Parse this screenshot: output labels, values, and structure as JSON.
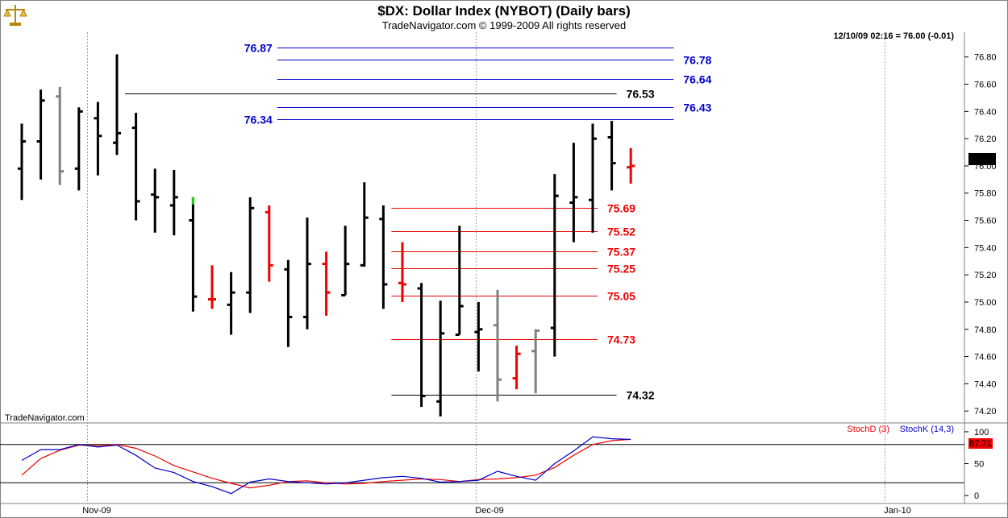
{
  "header": {
    "title": "$DX:  Dollar Index (NYBOT)  (Daily bars)",
    "subtitle": "TradeNavigator.com © 1999-2009 All rights reserved",
    "quote": "12/10/09 02:16 = 76.00 (-0.01)",
    "watermark": "TradeNavigator.com",
    "logo_icon": "scales-icon"
  },
  "chart_data": [
    {
      "type": "ohlc",
      "title": "$DX:  Dollar Index (NYBOT)  (Daily bars)",
      "ylim": [
        74.13,
        76.97
      ],
      "yticks": [
        "76.80",
        "76.60",
        "76.40",
        "76.20",
        "76.00",
        "75.80",
        "75.60",
        "75.40",
        "75.20",
        "75.00",
        "74.80",
        "74.60",
        "74.40",
        "74.20"
      ],
      "ytick_values": [
        76.8,
        76.6,
        76.4,
        76.2,
        76.0,
        75.8,
        75.6,
        75.4,
        75.2,
        75.0,
        74.8,
        74.6,
        74.4,
        74.2
      ],
      "xlabels": [
        "Nov-09",
        "Dec-09",
        "Jan-10"
      ],
      "last_price": "76.00",
      "colors": {
        "up": "#000000",
        "down": "#ee0000",
        "neutral": "#808080",
        "support": "#ee0000",
        "resistance": "#0000cc",
        "key": "#000000",
        "highlight": "#22cc22"
      },
      "bars": [
        {
          "o": 75.98,
          "h": 76.31,
          "l": 75.75,
          "c": 76.18,
          "color": "#000000"
        },
        {
          "o": 76.18,
          "h": 76.56,
          "l": 75.9,
          "c": 76.48,
          "color": "#000000"
        },
        {
          "o": 76.51,
          "h": 76.58,
          "l": 75.86,
          "c": 75.96,
          "color": "#808080"
        },
        {
          "o": 75.98,
          "h": 76.43,
          "l": 75.82,
          "c": 76.4,
          "color": "#000000"
        },
        {
          "o": 76.35,
          "h": 76.47,
          "l": 75.93,
          "c": 76.22,
          "color": "#000000"
        },
        {
          "o": 76.17,
          "h": 76.82,
          "l": 76.08,
          "c": 76.24,
          "color": "#000000"
        },
        {
          "o": 76.28,
          "h": 76.39,
          "l": 75.6,
          "c": 75.74,
          "color": "#000000"
        },
        {
          "o": 75.79,
          "h": 75.98,
          "l": 75.51,
          "c": 75.77,
          "color": "#000000"
        },
        {
          "o": 75.71,
          "h": 75.97,
          "l": 75.49,
          "c": 75.77,
          "color": "#000000"
        },
        {
          "o": 75.6,
          "h": 75.77,
          "l": 74.93,
          "c": 75.04,
          "color": "#000000",
          "highlight_top": true
        },
        {
          "o": 75.02,
          "h": 75.27,
          "l": 74.95,
          "c": 75.02,
          "color": "#ee0000"
        },
        {
          "o": 74.98,
          "h": 75.22,
          "l": 74.76,
          "c": 75.07,
          "color": "#000000"
        },
        {
          "o": 75.07,
          "h": 75.77,
          "l": 74.92,
          "c": 75.69,
          "color": "#000000"
        },
        {
          "o": 75.66,
          "h": 75.71,
          "l": 75.15,
          "c": 75.27,
          "color": "#ee0000"
        },
        {
          "o": 75.24,
          "h": 75.31,
          "l": 74.67,
          "c": 74.89,
          "color": "#000000"
        },
        {
          "o": 74.89,
          "h": 75.62,
          "l": 74.8,
          "c": 75.28,
          "color": "#000000"
        },
        {
          "o": 75.28,
          "h": 75.37,
          "l": 74.9,
          "c": 75.07,
          "color": "#ee0000"
        },
        {
          "o": 75.05,
          "h": 75.56,
          "l": 75.05,
          "c": 75.28,
          "color": "#000000"
        },
        {
          "o": 75.27,
          "h": 75.88,
          "l": 75.26,
          "c": 75.62,
          "color": "#000000"
        },
        {
          "o": 75.61,
          "h": 75.71,
          "l": 74.95,
          "c": 75.13,
          "color": "#000000"
        },
        {
          "o": 75.14,
          "h": 75.44,
          "l": 75.0,
          "c": 75.13,
          "color": "#ee0000"
        },
        {
          "o": 75.1,
          "h": 75.14,
          "l": 74.23,
          "c": 74.31,
          "color": "#000000"
        },
        {
          "o": 74.27,
          "h": 75.01,
          "l": 74.16,
          "c": 74.77,
          "color": "#000000"
        },
        {
          "o": 74.76,
          "h": 75.56,
          "l": 74.76,
          "c": 74.97,
          "color": "#000000"
        },
        {
          "o": 74.78,
          "h": 75.0,
          "l": 74.49,
          "c": 74.8,
          "color": "#000000"
        },
        {
          "o": 74.83,
          "h": 75.09,
          "l": 74.27,
          "c": 74.43,
          "color": "#808080"
        },
        {
          "o": 74.44,
          "h": 74.68,
          "l": 74.36,
          "c": 74.62,
          "color": "#ee0000"
        },
        {
          "o": 74.64,
          "h": 74.8,
          "l": 74.33,
          "c": 74.79,
          "color": "#808080"
        },
        {
          "o": 74.81,
          "h": 75.94,
          "l": 74.6,
          "c": 75.78,
          "color": "#000000"
        },
        {
          "o": 75.73,
          "h": 76.17,
          "l": 75.44,
          "c": 75.77,
          "color": "#000000"
        },
        {
          "o": 75.75,
          "h": 76.31,
          "l": 75.51,
          "c": 76.2,
          "color": "#000000"
        },
        {
          "o": 76.21,
          "h": 76.33,
          "l": 75.82,
          "c": 76.02,
          "color": "#000000"
        },
        {
          "o": 75.99,
          "h": 76.13,
          "l": 75.87,
          "c": 76.0,
          "color": "#ee0000"
        }
      ],
      "levels": [
        {
          "label": "76.87",
          "value": 76.87,
          "color": "#0000cc",
          "label_side": "left",
          "from_bar": 13,
          "to_bar": 34
        },
        {
          "label": "76.78",
          "value": 76.78,
          "color": "#0000cc",
          "label_side": "right",
          "from_bar": 13,
          "to_bar": 34
        },
        {
          "label": "76.64",
          "value": 76.64,
          "color": "#0000cc",
          "label_side": "right",
          "from_bar": 13,
          "to_bar": 34
        },
        {
          "label": "76.53",
          "value": 76.53,
          "color": "#000000",
          "label_side": "right",
          "from_bar": 5,
          "to_bar": 31
        },
        {
          "label": "76.43",
          "value": 76.43,
          "color": "#0000cc",
          "label_side": "right",
          "from_bar": 13,
          "to_bar": 34
        },
        {
          "label": "76.34",
          "value": 76.34,
          "color": "#0000cc",
          "label_side": "left",
          "from_bar": 13,
          "to_bar": 34
        },
        {
          "label": "75.69",
          "value": 75.69,
          "color": "#ee0000",
          "label_side": "right",
          "from_bar": 19,
          "to_bar": 30
        },
        {
          "label": "75.52",
          "value": 75.52,
          "color": "#ee0000",
          "label_side": "right",
          "from_bar": 19,
          "to_bar": 30
        },
        {
          "label": "75.37",
          "value": 75.37,
          "color": "#ee0000",
          "label_side": "right",
          "from_bar": 19,
          "to_bar": 30
        },
        {
          "label": "75.25",
          "value": 75.25,
          "color": "#ee0000",
          "label_side": "right",
          "from_bar": 19,
          "to_bar": 30
        },
        {
          "label": "75.05",
          "value": 75.05,
          "color": "#ee0000",
          "label_side": "right",
          "from_bar": 19,
          "to_bar": 30
        },
        {
          "label": "74.73",
          "value": 74.73,
          "color": "#ee0000",
          "label_side": "right",
          "from_bar": 19,
          "to_bar": 30
        },
        {
          "label": "74.32",
          "value": 74.32,
          "color": "#000000",
          "label_side": "right",
          "from_bar": 19,
          "to_bar": 31
        }
      ]
    },
    {
      "type": "line",
      "ylim": [
        -10,
        110
      ],
      "yticks": [
        "100",
        "50",
        "0"
      ],
      "ytick_values": [
        100,
        50,
        0
      ],
      "reference_lines": [
        20,
        80
      ],
      "last_value": "87.71",
      "series": [
        {
          "name": "StochD (3)",
          "color": "#ee0000",
          "values": [
            32,
            58,
            71,
            79,
            78,
            80,
            74,
            62,
            47,
            37,
            27,
            19,
            12,
            16,
            22,
            23,
            20,
            18,
            19,
            22,
            24,
            26,
            25,
            22,
            25,
            26,
            28,
            32,
            44,
            63,
            80,
            86,
            88
          ]
        },
        {
          "name": "StochK (14,3)",
          "color": "#0000cc",
          "values": [
            55,
            72,
            72,
            80,
            76,
            79,
            63,
            43,
            36,
            22,
            14,
            3,
            21,
            26,
            22,
            20,
            18,
            20,
            24,
            28,
            30,
            27,
            21,
            22,
            24,
            38,
            30,
            24,
            50,
            70,
            92,
            89,
            88
          ]
        }
      ]
    }
  ]
}
